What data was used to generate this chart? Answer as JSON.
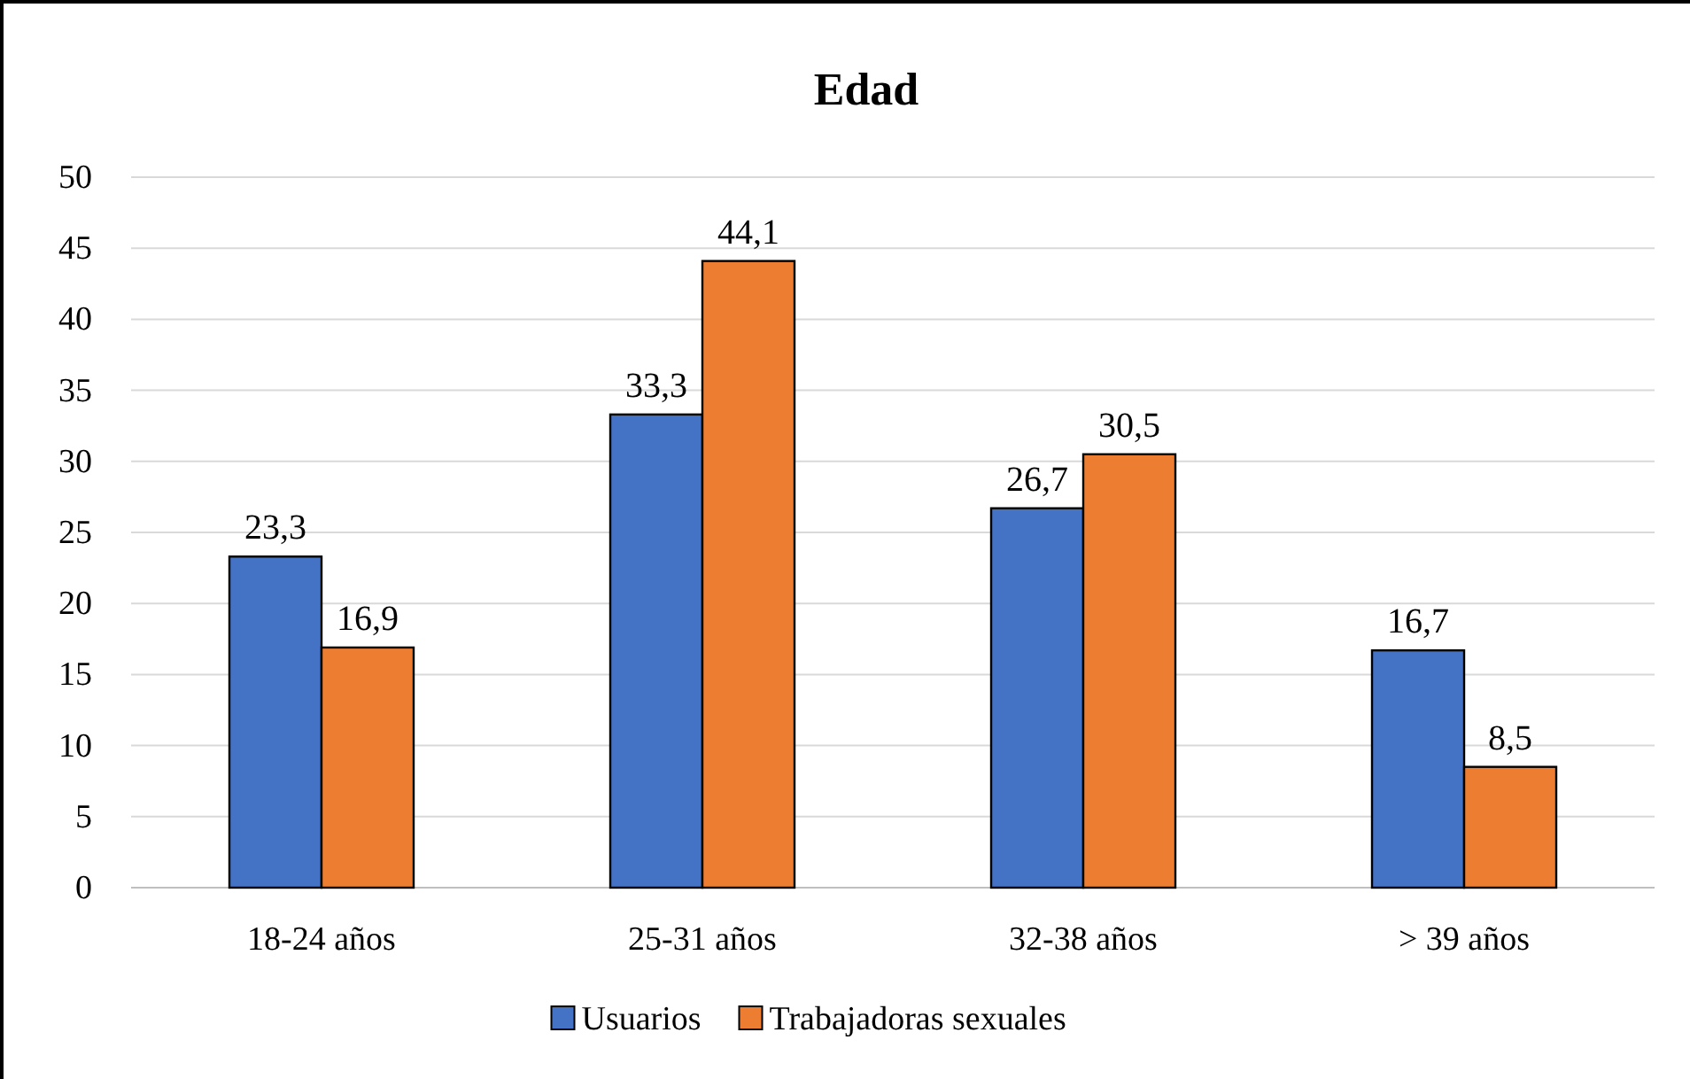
{
  "chart_data": {
    "type": "bar",
    "title": "Edad",
    "categories": [
      "18-24 años",
      "25-31 años",
      "32-38 años",
      "> 39 años"
    ],
    "series": [
      {
        "name": "Usuarios",
        "color": "#4472c4",
        "values": [
          23.3,
          33.3,
          26.7,
          16.7
        ],
        "value_labels": [
          "23,3",
          "33,3",
          "26,7",
          "16,7"
        ]
      },
      {
        "name": "Trabajadoras sexuales",
        "color": "#ed7d31",
        "values": [
          16.9,
          44.1,
          30.5,
          8.5
        ],
        "value_labels": [
          "16,9",
          "44,1",
          "30,5",
          "8,5"
        ]
      }
    ],
    "ylim": [
      0,
      50
    ],
    "yticks": [
      0,
      5,
      10,
      15,
      20,
      25,
      30,
      35,
      40,
      45,
      50
    ],
    "grid": "y",
    "legend": "bottom"
  }
}
